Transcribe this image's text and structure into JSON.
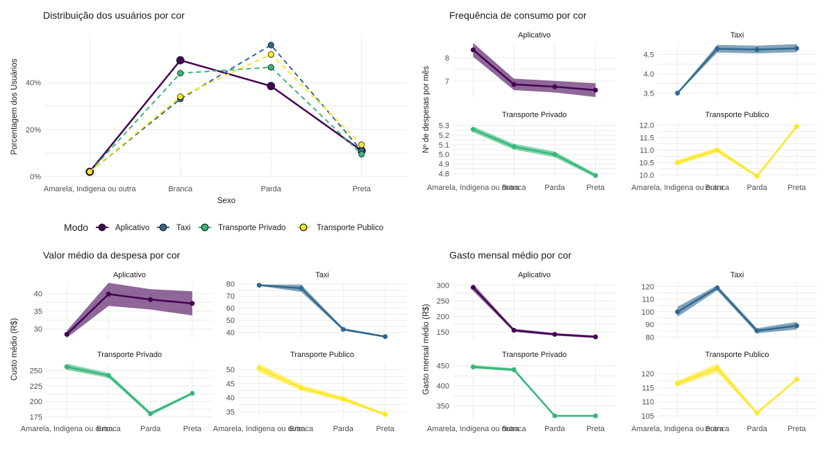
{
  "colors": {
    "Aplicativo": "#440154",
    "Taxi": "#31688E",
    "Transporte Privado": "#35B779",
    "Transporte Publico": "#FDE725"
  },
  "legend": {
    "title": "Modo",
    "items": [
      "Aplicativo",
      "Taxi",
      "Transporte Privado",
      "Transporte Publico"
    ]
  },
  "chart_data": [
    {
      "type": "line",
      "title": "Distribuição dos usuários por cor",
      "xlabel": "Sexo",
      "ylabel": "Porcentagem dos Usuários",
      "categories": [
        "Amarela, Indigena ou outra",
        "Branca",
        "Parda",
        "Preta"
      ],
      "ylim": [
        0,
        0.6
      ],
      "yticks": [
        0,
        0.2,
        0.4
      ],
      "ytick_labels": [
        "0%",
        "20%",
        "40%"
      ],
      "series": [
        {
          "name": "Aplicativo",
          "values": [
            0.02,
            0.495,
            0.385,
            0.11
          ],
          "style": "solid"
        },
        {
          "name": "Taxi",
          "values": [
            0.02,
            0.33,
            0.56,
            0.11
          ],
          "style": "dashed"
        },
        {
          "name": "Transporte Privado",
          "values": [
            0.02,
            0.44,
            0.465,
            0.095
          ],
          "style": "dashed"
        },
        {
          "name": "Transporte Publico",
          "values": [
            0.02,
            0.34,
            0.52,
            0.135
          ],
          "style": "dashed"
        }
      ]
    },
    {
      "type": "line",
      "title": "Frequência de consumo por cor",
      "ylabel": "Nº de despesas por mês",
      "categories": [
        "Amarela, Indigena ou outra",
        "Branca",
        "Parda",
        "Preta"
      ],
      "facets": [
        {
          "name": "Aplicativo",
          "values": [
            8.35,
            6.85,
            6.75,
            6.6
          ],
          "lower": [
            8.05,
            6.6,
            6.5,
            6.3
          ],
          "upper": [
            8.65,
            7.1,
            7.0,
            6.9
          ],
          "ylim": [
            6.3,
            8.65
          ],
          "yticks": [
            7,
            8
          ],
          "ytick_labels": [
            "7",
            "8"
          ]
        },
        {
          "name": "Taxi",
          "values": [
            3.5,
            4.65,
            4.63,
            4.66
          ],
          "lower": [
            3.48,
            4.55,
            4.53,
            4.56
          ],
          "upper": [
            3.52,
            4.75,
            4.73,
            4.77
          ],
          "ylim": [
            3.4,
            4.8
          ],
          "yticks": [
            3.5,
            4.0,
            4.5
          ],
          "ytick_labels": [
            "3.5",
            "4.0",
            "4.5"
          ]
        },
        {
          "name": "Transporte Privado",
          "values": [
            5.26,
            5.08,
            5.0,
            4.78
          ],
          "lower": [
            5.23,
            5.05,
            4.97,
            4.76
          ],
          "upper": [
            5.29,
            5.11,
            5.03,
            4.8
          ],
          "ylim": [
            4.76,
            5.33
          ],
          "yticks": [
            4.8,
            4.9,
            5.0,
            5.1,
            5.2,
            5.3
          ],
          "ytick_labels": [
            "4.8",
            "4.9",
            "5.0",
            "5.1",
            "5.2",
            "5.3"
          ]
        },
        {
          "name": "Transporte Publico",
          "values": [
            10.5,
            11.0,
            9.95,
            11.95
          ],
          "lower": [
            10.4,
            10.9,
            9.9,
            11.9
          ],
          "upper": [
            10.6,
            11.1,
            10.0,
            12.0
          ],
          "ylim": [
            9.9,
            12.1
          ],
          "yticks": [
            10.0,
            10.5,
            11.0,
            11.5,
            12.0
          ],
          "ytick_labels": [
            "10.0",
            "10.5",
            "11.0",
            "11.5",
            "12.0"
          ]
        }
      ]
    },
    {
      "type": "line",
      "title": "Valor médio da despesa por cor",
      "ylabel": "Custo médio (R$)",
      "categories": [
        "Amarela, Indigena ou outra",
        "Branca",
        "Parda",
        "Preta"
      ],
      "facets": [
        {
          "name": "Aplicativo",
          "values": [
            28.5,
            39.8,
            38.3,
            37.2
          ],
          "lower": [
            27.5,
            36.5,
            35.5,
            33.8
          ],
          "upper": [
            29.5,
            43.0,
            41.2,
            40.6
          ],
          "ylim": [
            27.0,
            43.0
          ],
          "yticks": [
            30,
            35,
            40
          ],
          "ytick_labels": [
            "30",
            "35",
            "40"
          ]
        },
        {
          "name": "Taxi",
          "values": [
            79,
            76.5,
            42.5,
            36.5
          ],
          "lower": [
            78.5,
            73.5,
            41.5,
            35.8
          ],
          "upper": [
            79.5,
            79.5,
            43.5,
            37.2
          ],
          "ylim": [
            34,
            81
          ],
          "yticks": [
            40,
            50,
            60,
            70,
            80
          ],
          "ytick_labels": [
            "40",
            "50",
            "60",
            "70",
            "80"
          ]
        },
        {
          "name": "Transporte Privado",
          "values": [
            256,
            242,
            180,
            213
          ],
          "lower": [
            251,
            238,
            177,
            211
          ],
          "upper": [
            261,
            246,
            183,
            215
          ],
          "ylim": [
            172,
            263
          ],
          "yticks": [
            175,
            200,
            225,
            250
          ],
          "ytick_labels": [
            "175",
            "200",
            "225",
            "250"
          ]
        },
        {
          "name": "Transporte Publico",
          "values": [
            50.5,
            43.5,
            39.5,
            34
          ],
          "lower": [
            49.0,
            42.5,
            38.7,
            33.6
          ],
          "upper": [
            52.0,
            44.5,
            40.3,
            34.4
          ],
          "ylim": [
            32.5,
            52.5
          ],
          "yticks": [
            35,
            40,
            45,
            50
          ],
          "ytick_labels": [
            "35",
            "40",
            "45",
            "50"
          ]
        }
      ]
    },
    {
      "type": "line",
      "title": "Gasto mensal médio por cor",
      "ylabel": "Gasto mensal médio (R$)",
      "categories": [
        "Amarela, Indigena ou outra",
        "Branca",
        "Parda",
        "Preta"
      ],
      "facets": [
        {
          "name": "Aplicativo",
          "values": [
            293,
            155,
            142,
            134
          ],
          "lower": [
            282,
            150,
            138,
            130
          ],
          "upper": [
            304,
            160,
            146,
            138
          ],
          "ylim": [
            125,
            308
          ],
          "yticks": [
            150,
            200,
            250,
            300
          ],
          "ytick_labels": [
            "150",
            "200",
            "250",
            "300"
          ]
        },
        {
          "name": "Taxi",
          "values": [
            100,
            119,
            85,
            89
          ],
          "lower": [
            96,
            117,
            83,
            86
          ],
          "upper": [
            104,
            121,
            87,
            92
          ],
          "ylim": [
            78,
            123
          ],
          "yticks": [
            80,
            90,
            100,
            110,
            120
          ],
          "ytick_labels": [
            "80",
            "90",
            "100",
            "110",
            "120"
          ]
        },
        {
          "name": "Transporte Privado",
          "values": [
            447,
            440,
            325,
            325
          ],
          "lower": [
            443,
            436,
            323,
            323
          ],
          "upper": [
            451,
            444,
            327,
            327
          ],
          "ylim": [
            318,
            458
          ],
          "yticks": [
            350,
            400,
            450
          ],
          "ytick_labels": [
            "350",
            "400",
            "450"
          ]
        },
        {
          "name": "Transporte Publico",
          "values": [
            116.5,
            122,
            106,
            118
          ],
          "lower": [
            115.5,
            120.5,
            105.5,
            117.8
          ],
          "upper": [
            117.5,
            123.5,
            106.5,
            118.2
          ],
          "ylim": [
            104,
            124
          ],
          "yticks": [
            105,
            110,
            115,
            120
          ],
          "ytick_labels": [
            "105",
            "110",
            "115",
            "120"
          ]
        }
      ]
    }
  ]
}
